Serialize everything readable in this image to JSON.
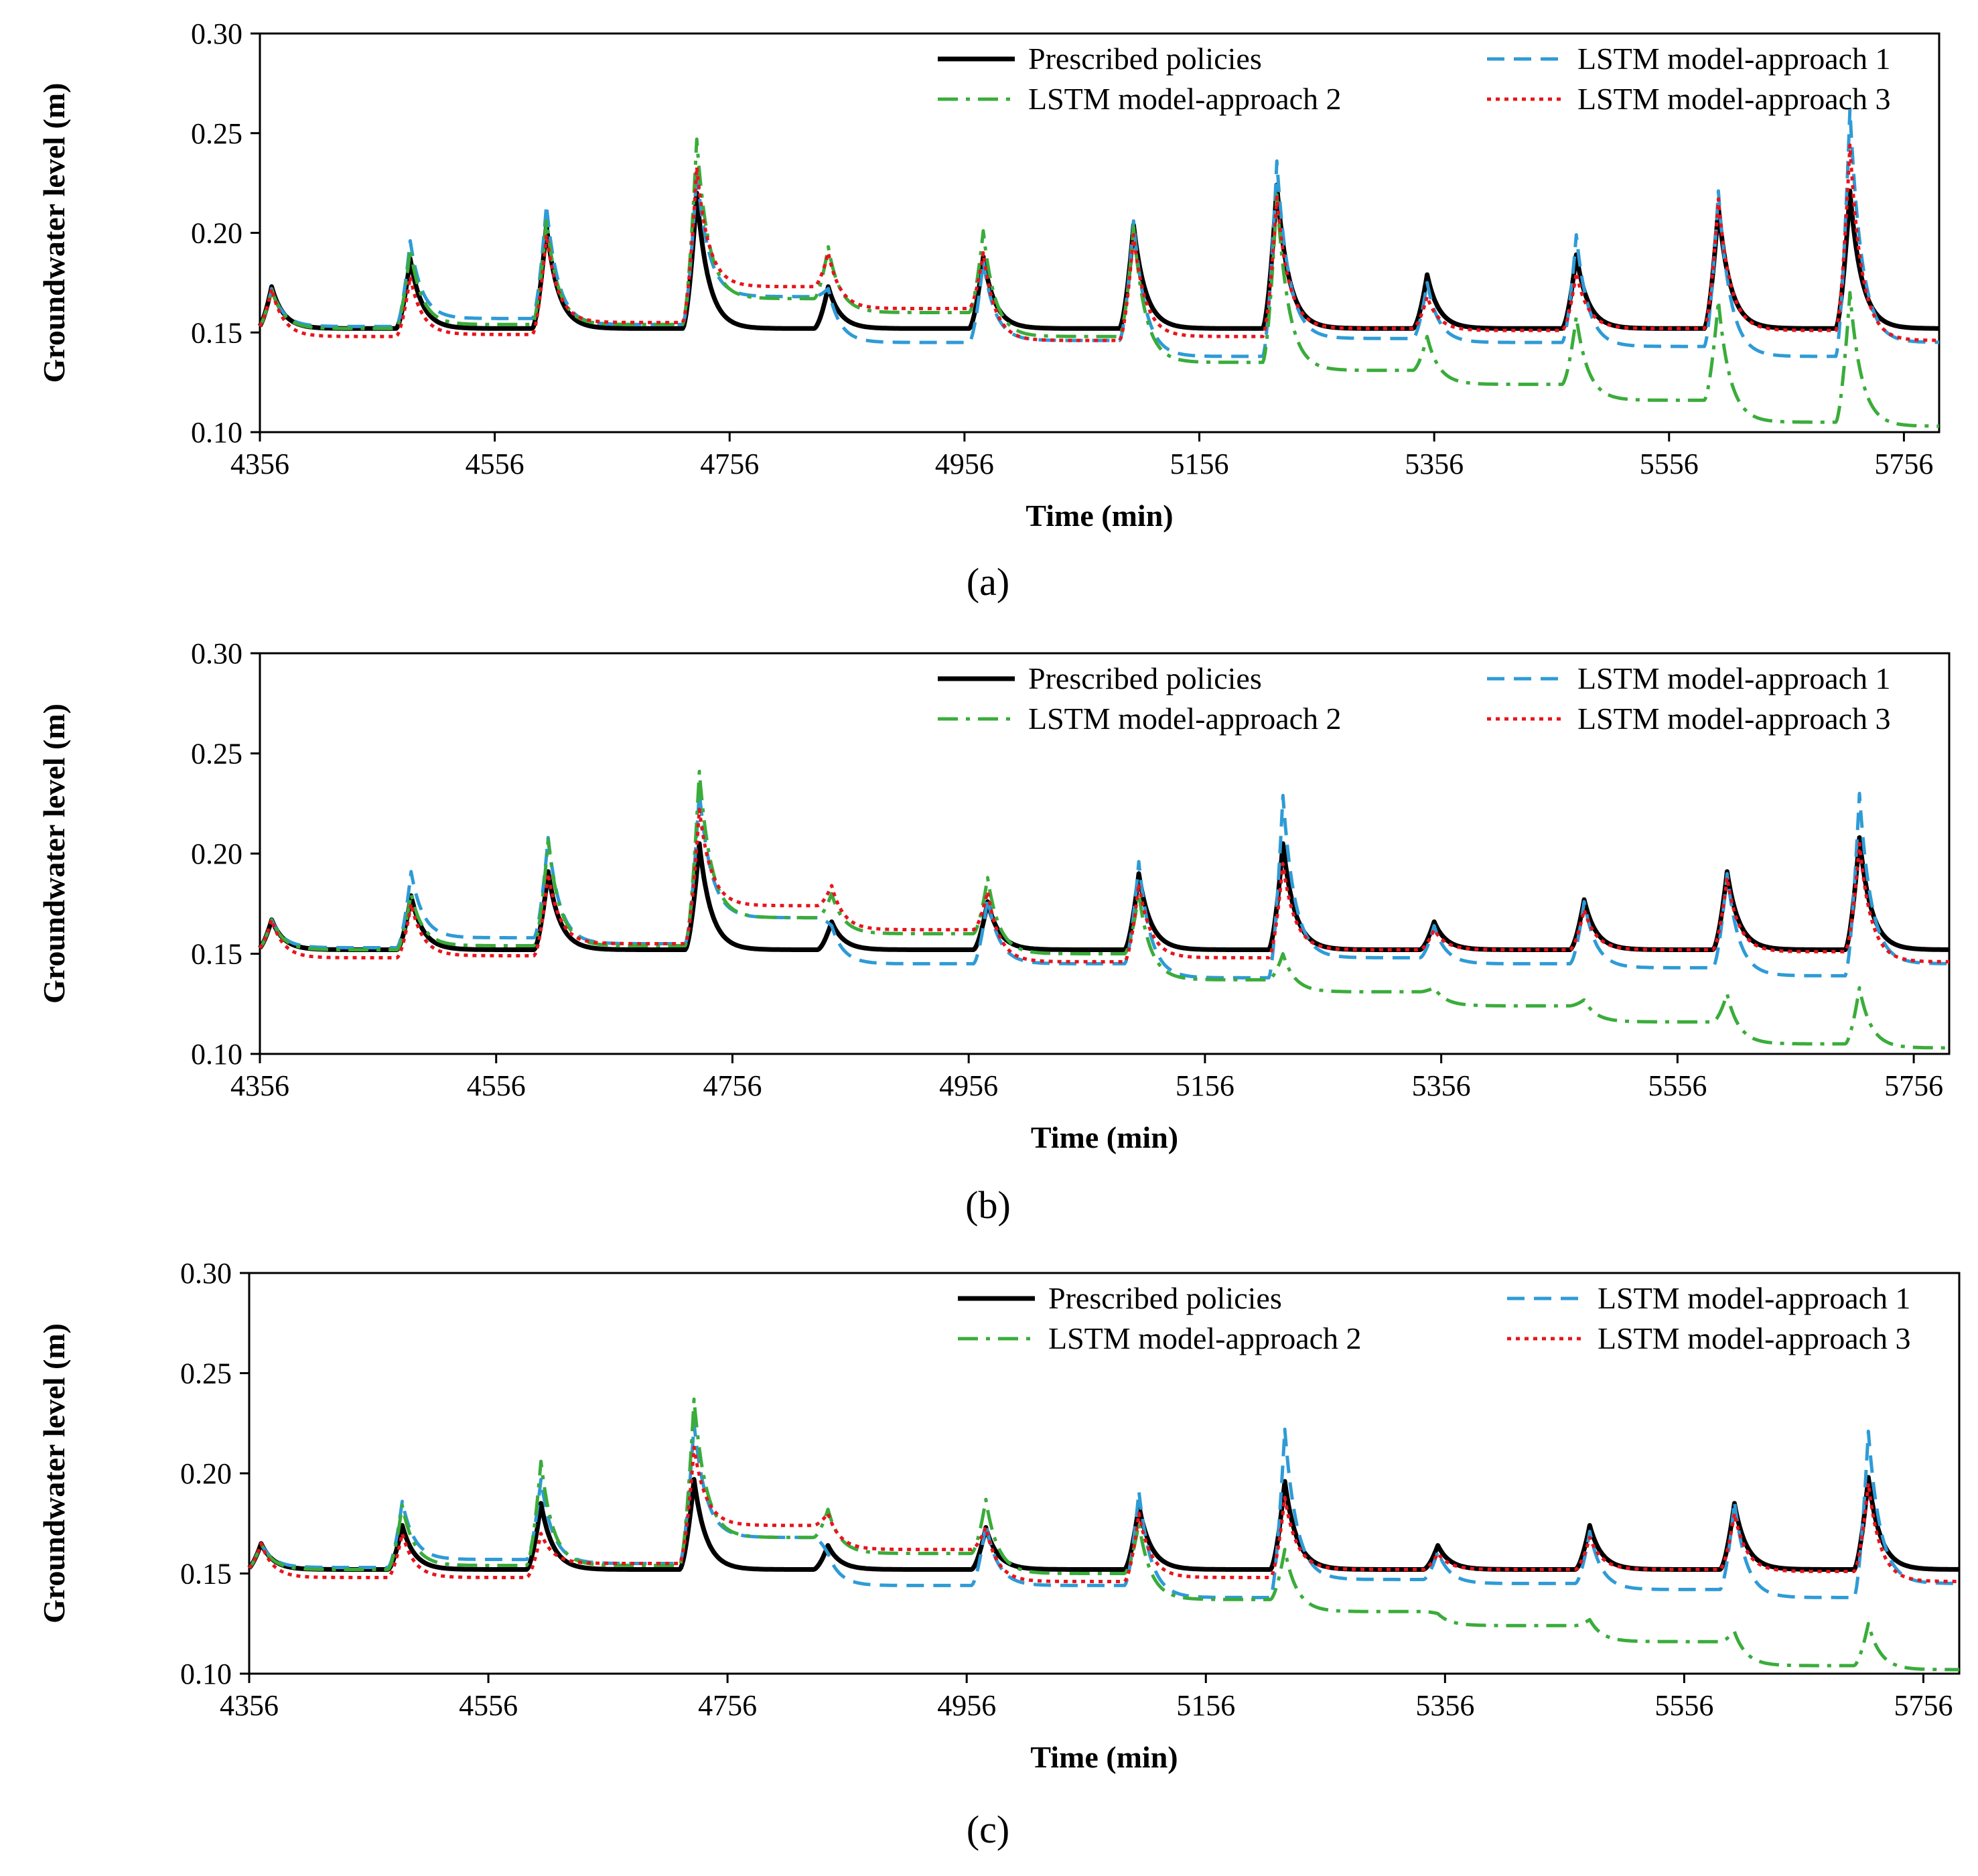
{
  "figure": {
    "panel_labels": [
      "(a)",
      "(b)",
      "(c)"
    ]
  },
  "colors": {
    "prescribed": "#000000",
    "approach1": "#2e9bd6",
    "approach2": "#3aac3a",
    "approach3": "#e8141c"
  },
  "chart_data": [
    {
      "type": "line",
      "panel": "(a)",
      "xlabel": "Time (min)",
      "ylabel": "Groundwater level (m)",
      "xlim": [
        4356,
        5786
      ],
      "ylim": [
        0.1,
        0.3
      ],
      "xticks": [
        4356,
        4556,
        4756,
        4956,
        5156,
        5356,
        5556,
        5756
      ],
      "yticks": [
        "0.10",
        "0.15",
        "0.20",
        "0.25",
        "0.30"
      ],
      "baseline": 0.152,
      "series": [
        {
          "key": "prescribed",
          "name": "Prescribed policies",
          "style": "solid",
          "peaks": [
            [
              4366,
              0.173
            ],
            [
              4484,
              0.187
            ],
            [
              4600,
              0.204
            ],
            [
              4728,
              0.22
            ],
            [
              4840,
              0.173
            ],
            [
              4972,
              0.188
            ],
            [
              5100,
              0.204
            ],
            [
              5222,
              0.224
            ],
            [
              5350,
              0.179
            ],
            [
              5477,
              0.189
            ],
            [
              5598,
              0.213
            ],
            [
              5710,
              0.221
            ]
          ]
        },
        {
          "key": "approach1",
          "name": "LSTM model-approach 1",
          "style": "dashed",
          "peaks": [
            [
              4366,
              0.172
            ],
            [
              4484,
              0.196
            ],
            [
              4600,
              0.214
            ],
            [
              4728,
              0.231
            ],
            [
              4840,
              0.172
            ],
            [
              4972,
              0.186
            ],
            [
              5100,
              0.206
            ],
            [
              5222,
              0.236
            ],
            [
              5350,
              0.175
            ],
            [
              5477,
              0.199
            ],
            [
              5598,
              0.221
            ],
            [
              5710,
              0.262
            ]
          ],
          "plateaus": [
            0.152,
            0.153,
            0.157,
            0.154,
            0.168,
            0.145,
            0.146,
            0.138,
            0.147,
            0.145,
            0.143,
            0.138,
            0.145
          ]
        },
        {
          "key": "approach2",
          "name": "LSTM model-approach 2",
          "style": "dashdot",
          "peaks": [
            [
              4366,
              0.172
            ],
            [
              4484,
              0.192
            ],
            [
              4600,
              0.206
            ],
            [
              4728,
              0.247
            ],
            [
              4840,
              0.193
            ],
            [
              4972,
              0.201
            ],
            [
              5100,
              0.203
            ],
            [
              5222,
              0.219
            ],
            [
              5350,
              0.148
            ],
            [
              5477,
              0.158
            ],
            [
              5598,
              0.166
            ],
            [
              5710,
              0.17
            ]
          ],
          "plateaus": [
            0.152,
            0.152,
            0.154,
            0.154,
            0.167,
            0.16,
            0.148,
            0.135,
            0.131,
            0.124,
            0.116,
            0.105,
            0.103
          ]
        },
        {
          "key": "approach3",
          "name": "LSTM model-approach 3",
          "style": "dotted",
          "peaks": [
            [
              4366,
              0.172
            ],
            [
              4484,
              0.178
            ],
            [
              4600,
              0.199
            ],
            [
              4728,
              0.233
            ],
            [
              4840,
              0.19
            ],
            [
              4972,
              0.19
            ],
            [
              5100,
              0.199
            ],
            [
              5222,
              0.218
            ],
            [
              5350,
              0.168
            ],
            [
              5477,
              0.18
            ],
            [
              5598,
              0.217
            ],
            [
              5710,
              0.244
            ]
          ],
          "plateaus": [
            0.152,
            0.148,
            0.149,
            0.155,
            0.173,
            0.162,
            0.146,
            0.148,
            0.152,
            0.151,
            0.152,
            0.151,
            0.146
          ]
        }
      ]
    },
    {
      "type": "line",
      "panel": "(b)",
      "xlabel": "Time (min)",
      "ylabel": "Groundwater level (m)",
      "xlim": [
        4356,
        5786
      ],
      "ylim": [
        0.1,
        0.3
      ],
      "xticks": [
        4356,
        4556,
        4756,
        4956,
        5156,
        5356,
        5556,
        5756
      ],
      "yticks": [
        "0.10",
        "0.15",
        "0.20",
        "0.25",
        "0.30"
      ],
      "baseline": 0.152,
      "series": [
        {
          "key": "prescribed",
          "name": "Prescribed policies",
          "style": "solid",
          "peaks": [
            [
              4366,
              0.167
            ],
            [
              4484,
              0.179
            ],
            [
              4600,
              0.191
            ],
            [
              4728,
              0.205
            ],
            [
              4840,
              0.166
            ],
            [
              4972,
              0.176
            ],
            [
              5100,
              0.19
            ],
            [
              5222,
              0.205
            ],
            [
              5350,
              0.166
            ],
            [
              5477,
              0.177
            ],
            [
              5598,
              0.191
            ],
            [
              5710,
              0.208
            ]
          ]
        },
        {
          "key": "approach1",
          "name": "LSTM model-approach 1",
          "style": "dashed",
          "peaks": [
            [
              4366,
              0.167
            ],
            [
              4484,
              0.191
            ],
            [
              4600,
              0.208
            ],
            [
              4728,
              0.231
            ],
            [
              4840,
              0.164
            ],
            [
              4972,
              0.178
            ],
            [
              5100,
              0.196
            ],
            [
              5222,
              0.229
            ],
            [
              5350,
              0.164
            ],
            [
              5477,
              0.176
            ],
            [
              5598,
              0.19
            ],
            [
              5710,
              0.23
            ]
          ],
          "plateaus": [
            0.152,
            0.153,
            0.158,
            0.155,
            0.168,
            0.145,
            0.145,
            0.138,
            0.148,
            0.145,
            0.143,
            0.139,
            0.145
          ]
        },
        {
          "key": "approach2",
          "name": "LSTM model-approach 2",
          "style": "dashdot",
          "peaks": [
            [
              4366,
              0.167
            ],
            [
              4484,
              0.18
            ],
            [
              4600,
              0.207
            ],
            [
              4728,
              0.241
            ],
            [
              4840,
              0.18
            ],
            [
              4972,
              0.188
            ],
            [
              5100,
              0.18
            ],
            [
              5222,
              0.15
            ],
            [
              5350,
              0.133
            ],
            [
              5477,
              0.127
            ],
            [
              5598,
              0.13
            ],
            [
              5710,
              0.133
            ]
          ],
          "plateaus": [
            0.152,
            0.152,
            0.154,
            0.154,
            0.168,
            0.16,
            0.15,
            0.137,
            0.131,
            0.124,
            0.116,
            0.105,
            0.103
          ]
        },
        {
          "key": "approach3",
          "name": "LSTM model-approach 3",
          "style": "dotted",
          "peaks": [
            [
              4366,
              0.167
            ],
            [
              4484,
              0.175
            ],
            [
              4600,
              0.19
            ],
            [
              4728,
              0.222
            ],
            [
              4840,
              0.184
            ],
            [
              4972,
              0.181
            ],
            [
              5100,
              0.185
            ],
            [
              5222,
              0.195
            ],
            [
              5350,
              0.162
            ],
            [
              5477,
              0.172
            ],
            [
              5598,
              0.188
            ],
            [
              5710,
              0.205
            ]
          ],
          "plateaus": [
            0.152,
            0.148,
            0.149,
            0.155,
            0.174,
            0.162,
            0.146,
            0.148,
            0.152,
            0.152,
            0.152,
            0.151,
            0.146
          ]
        }
      ]
    },
    {
      "type": "line",
      "panel": "(c)",
      "xlabel": "Time (min)",
      "ylabel": "Groundwater level (m)",
      "xlim": [
        4356,
        5786
      ],
      "ylim": [
        0.1,
        0.3
      ],
      "xticks": [
        4356,
        4556,
        4756,
        4956,
        5156,
        5356,
        5556,
        5756
      ],
      "yticks": [
        "0.10",
        "0.15",
        "0.20",
        "0.25",
        "0.30"
      ],
      "baseline": 0.152,
      "series": [
        {
          "key": "prescribed",
          "name": "Prescribed policies",
          "style": "solid",
          "peaks": [
            [
              4366,
              0.165
            ],
            [
              4484,
              0.174
            ],
            [
              4600,
              0.185
            ],
            [
              4728,
              0.197
            ],
            [
              4840,
              0.164
            ],
            [
              4972,
              0.173
            ],
            [
              5100,
              0.184
            ],
            [
              5222,
              0.196
            ],
            [
              5350,
              0.164
            ],
            [
              5477,
              0.174
            ],
            [
              5598,
              0.185
            ],
            [
              5710,
              0.198
            ]
          ]
        },
        {
          "key": "approach1",
          "name": "LSTM model-approach 1",
          "style": "dashed",
          "peaks": [
            [
              4366,
              0.165
            ],
            [
              4484,
              0.186
            ],
            [
              4600,
              0.197
            ],
            [
              4728,
              0.225
            ],
            [
              4840,
              0.16
            ],
            [
              4972,
              0.175
            ],
            [
              5100,
              0.191
            ],
            [
              5222,
              0.222
            ],
            [
              5350,
              0.161
            ],
            [
              5477,
              0.171
            ],
            [
              5598,
              0.186
            ],
            [
              5710,
              0.221
            ]
          ],
          "plateaus": [
            0.152,
            0.153,
            0.157,
            0.155,
            0.168,
            0.144,
            0.144,
            0.138,
            0.147,
            0.145,
            0.142,
            0.138,
            0.145
          ]
        },
        {
          "key": "approach2",
          "name": "LSTM model-approach 2",
          "style": "dashdot",
          "peaks": [
            [
              4366,
              0.165
            ],
            [
              4484,
              0.184
            ],
            [
              4600,
              0.206
            ],
            [
              4728,
              0.237
            ],
            [
              4840,
              0.182
            ],
            [
              4972,
              0.187
            ],
            [
              5100,
              0.175
            ],
            [
              5222,
              0.162
            ],
            [
              5350,
              0.13
            ],
            [
              5477,
              0.127
            ],
            [
              5598,
              0.121
            ],
            [
              5710,
              0.125
            ]
          ],
          "plateaus": [
            0.152,
            0.152,
            0.154,
            0.154,
            0.168,
            0.16,
            0.15,
            0.137,
            0.131,
            0.124,
            0.116,
            0.104,
            0.102
          ]
        },
        {
          "key": "approach3",
          "name": "LSTM model-approach 3",
          "style": "dotted",
          "peaks": [
            [
              4366,
              0.165
            ],
            [
              4484,
              0.17
            ],
            [
              4600,
              0.17
            ],
            [
              4728,
              0.213
            ],
            [
              4840,
              0.18
            ],
            [
              4972,
              0.173
            ],
            [
              5100,
              0.18
            ],
            [
              5222,
              0.188
            ],
            [
              5350,
              0.16
            ],
            [
              5477,
              0.168
            ],
            [
              5598,
              0.18
            ],
            [
              5710,
              0.195
            ]
          ],
          "plateaus": [
            0.152,
            0.148,
            0.148,
            0.155,
            0.174,
            0.162,
            0.146,
            0.148,
            0.152,
            0.152,
            0.152,
            0.151,
            0.146
          ]
        }
      ]
    }
  ]
}
